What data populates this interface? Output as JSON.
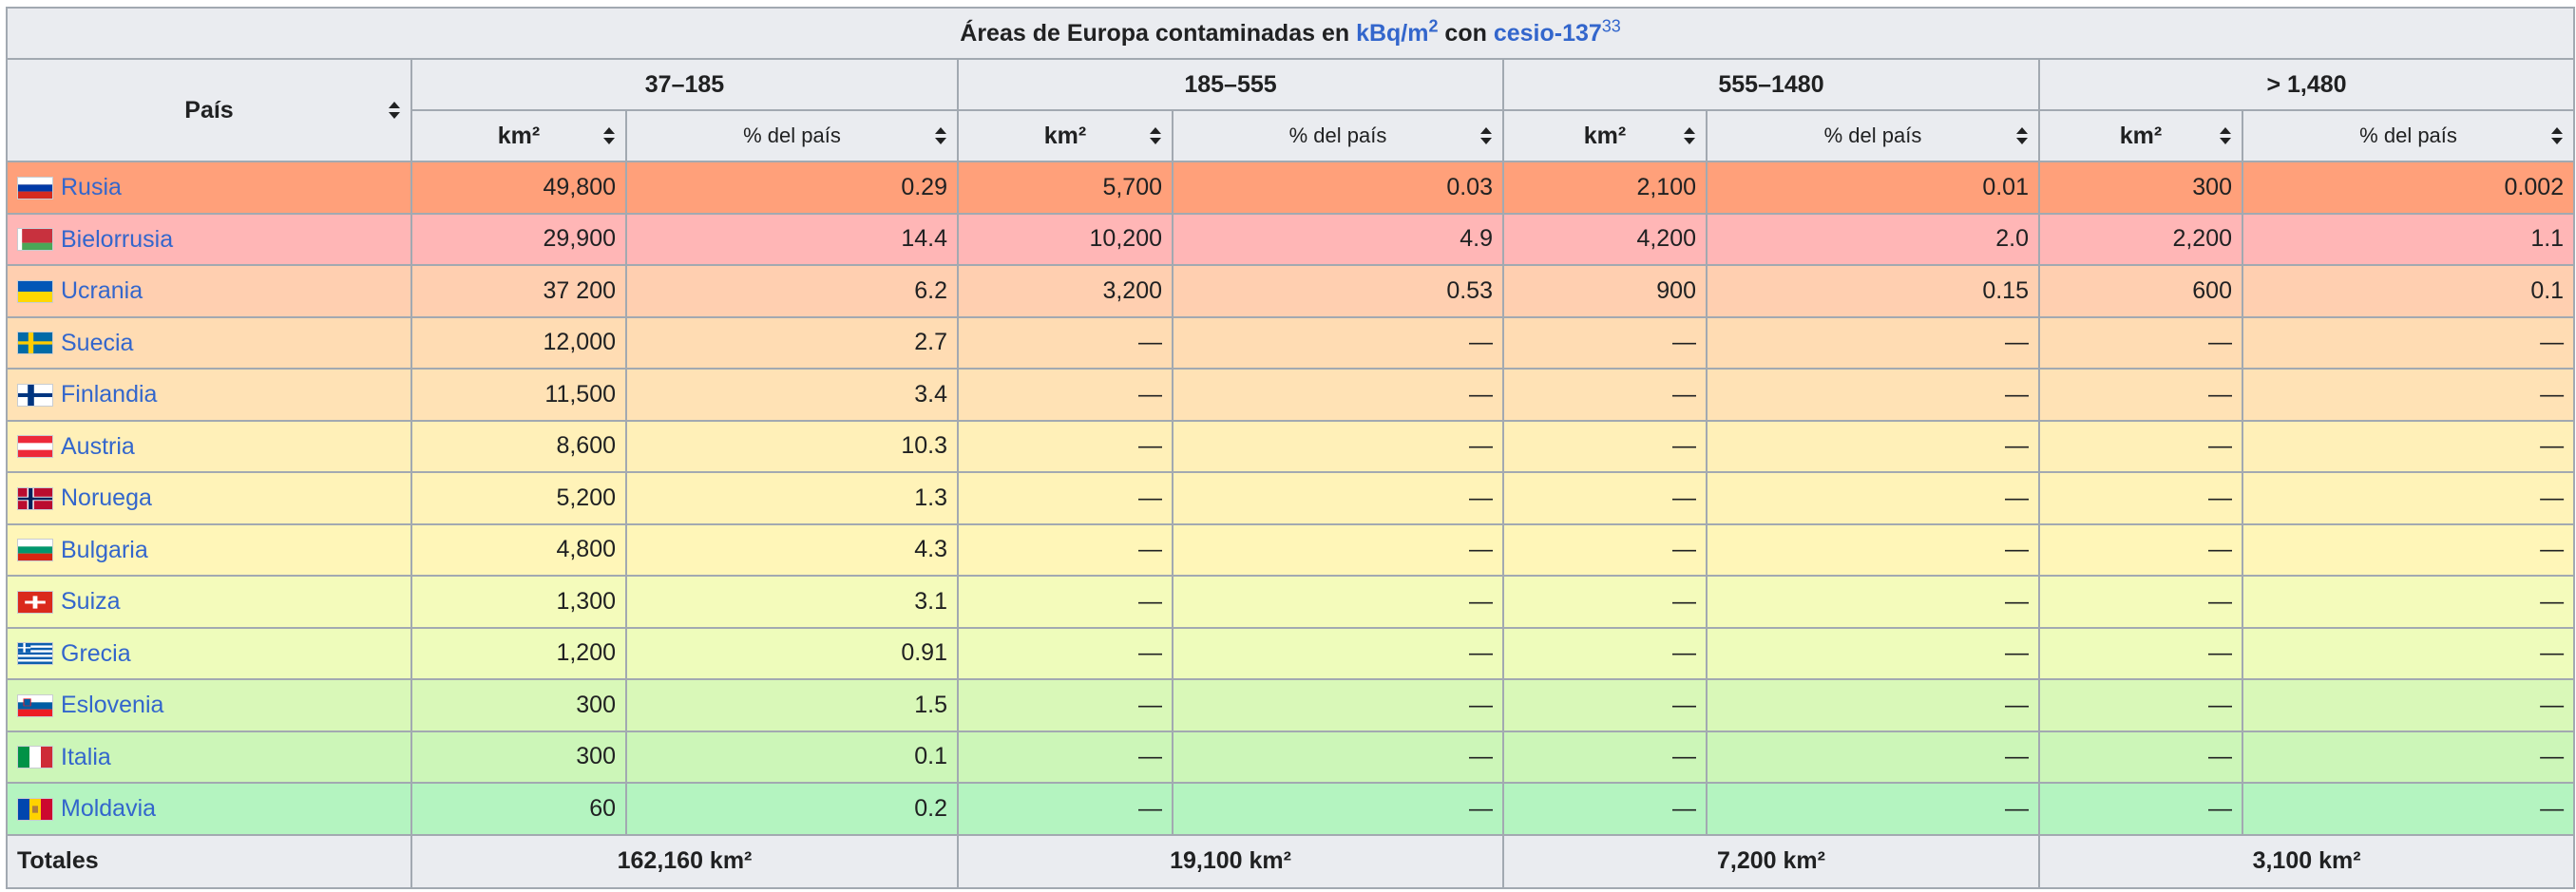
{
  "caption": {
    "prefix": "Áreas de Europa contaminadas en ",
    "unit_link": "kBq/m",
    "unit_sup": "2",
    "middle": " con ",
    "isotope_link": "cesio-137",
    "ref": "33"
  },
  "header": {
    "country_col": "País",
    "ranges": [
      "37–185",
      "185–555",
      "555–1480",
      "> 1,480"
    ],
    "km_label": "km²",
    "pct_label": "% del país"
  },
  "rows": [
    {
      "country": "Rusia",
      "flag": "russia-flag",
      "color": "#ffa07a",
      "v": [
        "49,800",
        "0.29",
        "5,700",
        "0.03",
        "2,100",
        "0.01",
        "300",
        "0.002"
      ]
    },
    {
      "country": "Bielorrusia",
      "flag": "belarus-flag",
      "color": "#ffb6b6",
      "v": [
        "29,900",
        "14.4",
        "10,200",
        "4.9",
        "4,200",
        "2.0",
        "2,200",
        "1.1"
      ]
    },
    {
      "country": "Ucrania",
      "flag": "ukraine-flag",
      "color": "#ffcfb0",
      "v": [
        "37 200",
        "6.2",
        "3,200",
        "0.53",
        "900",
        "0.15",
        "600",
        "0.1"
      ]
    },
    {
      "country": "Suecia",
      "flag": "sweden-flag",
      "color": "#ffdcb3",
      "v": [
        "12,000",
        "2.7",
        "—",
        "—",
        "—",
        "—",
        "—",
        "—"
      ]
    },
    {
      "country": "Finlandia",
      "flag": "finland-flag",
      "color": "#ffe2b5",
      "v": [
        "11,500",
        "3.4",
        "—",
        "—",
        "—",
        "—",
        "—",
        "—"
      ]
    },
    {
      "country": "Austria",
      "flag": "austria-flag",
      "color": "#fff0b8",
      "v": [
        "8,600",
        "10.3",
        "—",
        "—",
        "—",
        "—",
        "—",
        "—"
      ]
    },
    {
      "country": "Noruega",
      "flag": "norway-flag",
      "color": "#fff3b8",
      "v": [
        "5,200",
        "1.3",
        "—",
        "—",
        "—",
        "—",
        "—",
        "—"
      ]
    },
    {
      "country": "Bulgaria",
      "flag": "bulgaria-flag",
      "color": "#fff6b8",
      "v": [
        "4,800",
        "4.3",
        "—",
        "—",
        "—",
        "—",
        "—",
        "—"
      ]
    },
    {
      "country": "Suiza",
      "flag": "switzerland-flag",
      "color": "#f4fbbb",
      "v": [
        "1,300",
        "3.1",
        "—",
        "—",
        "—",
        "—",
        "—",
        "—"
      ]
    },
    {
      "country": "Grecia",
      "flag": "greece-flag",
      "color": "#eefcbb",
      "v": [
        "1,200",
        "0.91",
        "—",
        "—",
        "—",
        "—",
        "—",
        "—"
      ]
    },
    {
      "country": "Eslovenia",
      "flag": "slovenia-flag",
      "color": "#d9f8b8",
      "v": [
        "300",
        "1.5",
        "—",
        "—",
        "—",
        "—",
        "—",
        "—"
      ]
    },
    {
      "country": "Italia",
      "flag": "italy-flag",
      "color": "#ccf6b8",
      "v": [
        "300",
        "0.1",
        "—",
        "—",
        "—",
        "—",
        "—",
        "—"
      ]
    },
    {
      "country": "Moldavia",
      "flag": "moldova-flag",
      "color": "#b4f4c0",
      "v": [
        "60",
        "0.2",
        "—",
        "—",
        "—",
        "—",
        "—",
        "—"
      ]
    }
  ],
  "totals": {
    "label": "Totales",
    "values": [
      "162,160 km²",
      "19,100 km²",
      "7,200 km²",
      "3,100 km²"
    ]
  }
}
